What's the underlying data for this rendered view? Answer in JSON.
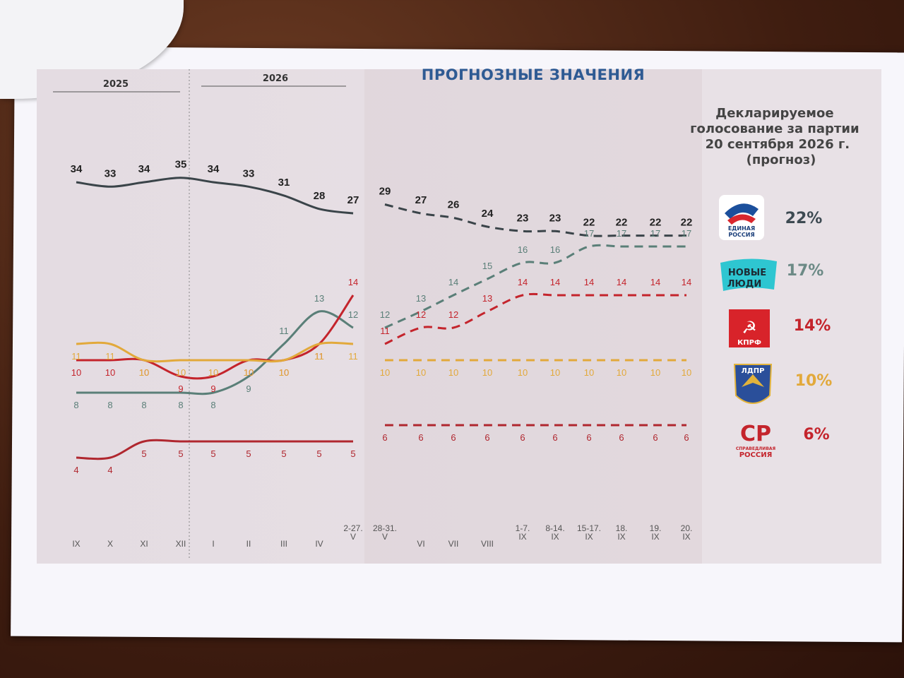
{
  "chart_data": {
    "type": "line",
    "title": "ПРОГНОЗНЫЕ ЗНАЧЕНИЯ",
    "years": [
      "2025",
      "2026"
    ],
    "categories": [
      "IX",
      "X",
      "XI",
      "XII",
      "I",
      "II",
      "III",
      "IV",
      "2-27. V",
      "28-31. V",
      "VI",
      "VII",
      "VIII",
      "1-7. IX",
      "8-14. IX",
      "15-17. IX",
      "18. IX",
      "19. IX",
      "20. IX"
    ],
    "forecast_from": "28-31. V",
    "series": [
      {
        "party": "Единая Россия",
        "color": "#3a4449",
        "values": [
          34,
          33,
          34,
          35,
          34,
          33,
          31,
          28,
          27,
          29,
          27,
          26,
          24,
          23,
          23,
          22,
          22,
          22,
          22
        ]
      },
      {
        "party": "Новые люди",
        "color": "#5a7f78",
        "values": [
          8,
          8,
          8,
          8,
          8,
          9,
          11,
          13,
          12,
          12,
          13,
          14,
          15,
          16,
          16,
          17,
          17,
          17,
          17
        ]
      },
      {
        "party": "КПРФ",
        "color": "#c4242c",
        "values": [
          10,
          10,
          10,
          9,
          9,
          10,
          10,
          11,
          14,
          11,
          12,
          12,
          13,
          14,
          14,
          14,
          14,
          14,
          14
        ]
      },
      {
        "party": "ЛДПР",
        "color": "#e2a93b",
        "values": [
          11,
          11,
          10,
          10,
          10,
          10,
          10,
          11,
          11,
          10,
          10,
          10,
          10,
          10,
          10,
          10,
          10,
          10,
          10
        ]
      },
      {
        "party": "Справедливая Россия",
        "color": "#b0272f",
        "values": [
          4,
          4,
          5,
          5,
          5,
          5,
          5,
          5,
          5,
          6,
          6,
          6,
          6,
          6,
          6,
          6,
          6,
          6,
          6
        ]
      }
    ]
  },
  "legend": {
    "title_lines": [
      "Декларируемое",
      "голосование за партии",
      "20 сентября 2026 г.",
      "(прогноз)"
    ],
    "items": [
      {
        "logo_lines": [
          "ЕДИНАЯ",
          "РОССИЯ"
        ],
        "value": "22%",
        "color": "#3d4a52"
      },
      {
        "logo_lines": [
          "НОВЫЕ",
          "ЛЮДИ"
        ],
        "value": "17",
        "unit": "%",
        "color": "#6c8a86"
      },
      {
        "logo_lines": [
          "КПРФ"
        ],
        "value": "14",
        "unit": "%",
        "color": "#c4242c"
      },
      {
        "logo_lines": [
          "ЛДПР"
        ],
        "value": "10",
        "unit": "%",
        "color": "#e2a93b"
      },
      {
        "logo_lines": [
          "СР",
          "СПРАВЕДЛИВАЯ",
          "РОССИЯ"
        ],
        "value": "6",
        "unit": "%",
        "color": "#c4242c"
      }
    ]
  }
}
